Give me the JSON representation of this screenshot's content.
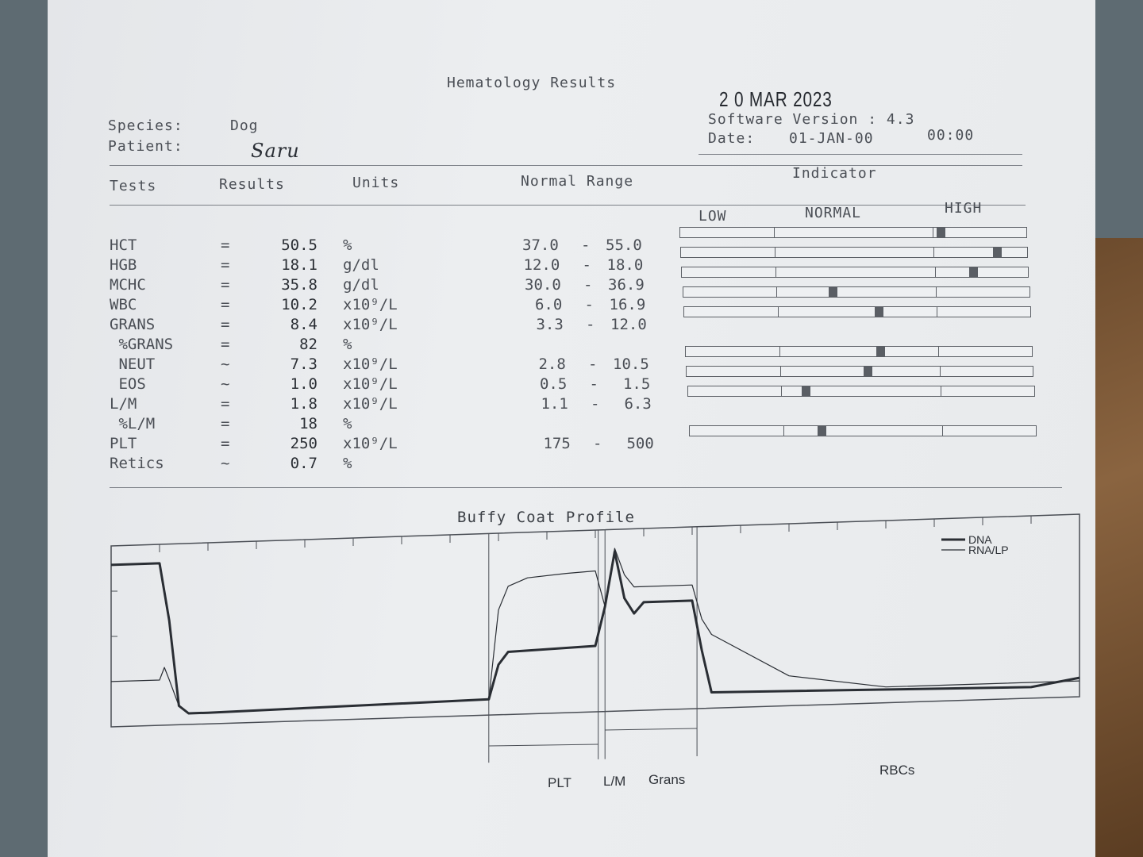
{
  "header": {
    "title": "Hematology Results",
    "stamp_date": "2 0 MAR 2023",
    "species_label": "Species:",
    "species_value": "Dog",
    "patient_label": "Patient:",
    "patient_name": "Saru",
    "software_label": "Software Version : 4.3",
    "date_label": "Date:",
    "date_value": "01-JAN-00",
    "time_value": "00:00"
  },
  "columns": {
    "tests": "Tests",
    "results": "Results",
    "units": "Units",
    "normal_range": "Normal Range",
    "indicator": "Indicator",
    "low": "LOW",
    "normal": "NORMAL",
    "high": "HIGH"
  },
  "rows": [
    {
      "test": "HCT",
      "op": "=",
      "result": "50.5",
      "unit": "%",
      "range_lo": "37.0",
      "range_hi": "55.0",
      "indicator": 0.74
    },
    {
      "test": "HGB",
      "op": "=",
      "result": "18.1",
      "unit": "g/dl",
      "range_lo": "12.0",
      "range_hi": "18.0",
      "indicator": 0.9
    },
    {
      "test": "MCHC",
      "op": "=",
      "result": "35.8",
      "unit": "g/dl",
      "range_lo": "30.0",
      "range_hi": "36.9",
      "indicator": 0.83
    },
    {
      "test": "WBC",
      "op": "=",
      "result": "10.2",
      "unit": "x10⁹/L",
      "range_lo": "6.0",
      "range_hi": "16.9",
      "indicator": 0.42
    },
    {
      "test": "GRANS",
      "op": "=",
      "result": "8.4",
      "unit": "x10⁹/L",
      "range_lo": "3.3",
      "range_hi": "12.0",
      "indicator": 0.55
    },
    {
      "test": " %GRANS",
      "op": "=",
      "result": "82",
      "unit": "%",
      "range_lo": "",
      "range_hi": "",
      "indicator": null
    },
    {
      "test": " NEUT",
      "op": "~",
      "result": "7.3",
      "unit": "x10⁹/L",
      "range_lo": "2.8",
      "range_hi": "10.5",
      "indicator": 0.55
    },
    {
      "test": " EOS",
      "op": "~",
      "result": "1.0",
      "unit": "x10⁹/L",
      "range_lo": "0.5",
      "range_hi": "1.5",
      "indicator": 0.51
    },
    {
      "test": "L/M",
      "op": "=",
      "result": "1.8",
      "unit": "x10⁹/L",
      "range_lo": "1.1",
      "range_hi": "6.3",
      "indicator": 0.33
    },
    {
      "test": " %L/M",
      "op": "=",
      "result": "18",
      "unit": "%",
      "range_lo": "",
      "range_hi": "",
      "indicator": null
    },
    {
      "test": "PLT",
      "op": "=",
      "result": "250",
      "unit": "x10⁹/L",
      "range_lo": "175",
      "range_hi": "500",
      "indicator": 0.37
    },
    {
      "test": "Retics",
      "op": "~",
      "result": "0.7",
      "unit": "%",
      "range_lo": "",
      "range_hi": "",
      "indicator": null
    }
  ],
  "chart_data": {
    "type": "line",
    "title": "Buffy Coat Profile",
    "legend": [
      "DNA",
      "RNA/LP"
    ],
    "legend_position": "top-right",
    "regions": [
      "PLT",
      "L/M",
      "Grans",
      "RBCs"
    ],
    "series": [
      {
        "name": "DNA",
        "style": "thick",
        "x": [
          0,
          5,
          6,
          7,
          8,
          10,
          39,
          40,
          41,
          50,
          51,
          52,
          53,
          54,
          55,
          60,
          61,
          62,
          95,
          100
        ],
        "y": [
          0.97,
          0.97,
          0.6,
          0.05,
          0.0,
          0.0,
          0.03,
          0.25,
          0.33,
          0.35,
          0.6,
          0.95,
          0.65,
          0.55,
          0.62,
          0.62,
          0.3,
          0.03,
          0.0,
          0.05
        ]
      },
      {
        "name": "RNA/LP",
        "style": "thin",
        "x": [
          0,
          5,
          5.5,
          6,
          7,
          8,
          10,
          39,
          40,
          41,
          43,
          47,
          50,
          51,
          52,
          53,
          54,
          60,
          61,
          62,
          70,
          80,
          100
        ],
        "y": [
          0.22,
          0.22,
          0.3,
          0.22,
          0.05,
          0.0,
          0.0,
          0.03,
          0.6,
          0.75,
          0.8,
          0.82,
          0.83,
          0.6,
          0.97,
          0.8,
          0.72,
          0.72,
          0.5,
          0.4,
          0.12,
          0.03,
          0.03
        ]
      }
    ]
  }
}
